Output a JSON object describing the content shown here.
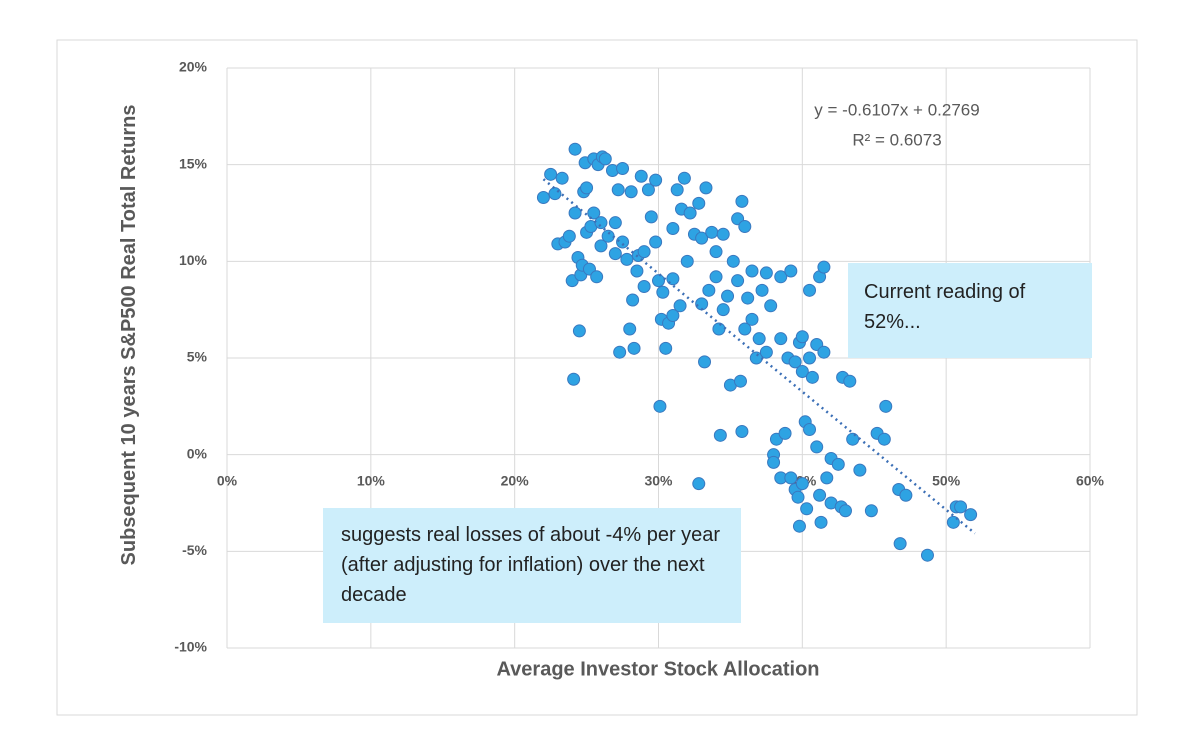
{
  "chart_data": {
    "type": "scatter",
    "xlabel": "Average Investor Stock Allocation",
    "ylabel": "Subsequent 10 years  S&P500 Real Total Returns",
    "xlim": [
      0,
      60
    ],
    "ylim": [
      -10,
      20
    ],
    "xticks": [
      {
        "value": 0,
        "label": "0%"
      },
      {
        "value": 10,
        "label": "10%"
      },
      {
        "value": 20,
        "label": "20%"
      },
      {
        "value": 30,
        "label": "30%"
      },
      {
        "value": 40,
        "label": "40%"
      },
      {
        "value": 50,
        "label": "50%"
      },
      {
        "value": 60,
        "label": "60%"
      }
    ],
    "yticks": [
      {
        "value": -10,
        "label": "-10%"
      },
      {
        "value": -5,
        "label": "-5%"
      },
      {
        "value": 0,
        "label": "0%"
      },
      {
        "value": 5,
        "label": "5%"
      },
      {
        "value": 10,
        "label": "10%"
      },
      {
        "value": 15,
        "label": "15%"
      },
      {
        "value": 20,
        "label": "20%"
      }
    ],
    "grid": true,
    "color": "#2ea3e3",
    "x": [
      22,
      22.5,
      22.8,
      23,
      23.3,
      23.5,
      23.8,
      24,
      24.1,
      24.2,
      24.2,
      24.4,
      24.5,
      24.6,
      24.7,
      24.8,
      24.9,
      25,
      25,
      25.2,
      25.3,
      25.5,
      25.5,
      25.7,
      25.8,
      26,
      26,
      26.1,
      26.3,
      26.5,
      26.8,
      27,
      27,
      27.2,
      27.3,
      27.5,
      27.5,
      27.8,
      28,
      28.1,
      28.2,
      28.3,
      28.5,
      28.6,
      28.8,
      29,
      29,
      29.3,
      29.5,
      29.8,
      29.8,
      30,
      30.1,
      30.2,
      30.3,
      30.5,
      30.7,
      31,
      31,
      31,
      31.3,
      31.5,
      31.6,
      31.8,
      32,
      32.2,
      32.5,
      32.8,
      32.8,
      33,
      33,
      33.3,
      33.2,
      33.5,
      33.7,
      34,
      34,
      34.2,
      34.3,
      34.5,
      34.5,
      34.8,
      35,
      35.2,
      35.5,
      35.5,
      35.7,
      35.8,
      35.8,
      36,
      36,
      36.2,
      36.5,
      36.5,
      36.8,
      37,
      37.2,
      37.5,
      37.5,
      37.8,
      38,
      38,
      38.2,
      38.5,
      38.5,
      38.5,
      38.8,
      39,
      39.2,
      39.2,
      39.5,
      39.5,
      39.7,
      39.8,
      39.8,
      40,
      40,
      40,
      40.2,
      40.3,
      40.5,
      40.5,
      40.5,
      40.7,
      41,
      41,
      41.2,
      41.2,
      41.3,
      41.5,
      41.5,
      41.7,
      42,
      42,
      42.5,
      42.7,
      42.8,
      43,
      43.3,
      43.5,
      44,
      44.8,
      45.2,
      45.7,
      45.8,
      46.7,
      46.8,
      47.2,
      48.7,
      50.5,
      50.7,
      51,
      51.7
    ],
    "values": [
      13.3,
      14.5,
      13.5,
      10.9,
      14.3,
      11,
      11.3,
      9,
      3.9,
      12.5,
      15.8,
      10.2,
      6.4,
      9.3,
      9.8,
      13.6,
      15.1,
      11.5,
      13.8,
      9.6,
      11.8,
      12.5,
      15.3,
      9.2,
      15,
      12,
      10.8,
      15.4,
      15.3,
      11.3,
      14.7,
      10.4,
      12,
      13.7,
      5.3,
      11,
      14.8,
      10.1,
      6.5,
      13.6,
      8,
      5.5,
      9.5,
      10.3,
      14.4,
      10.5,
      8.7,
      13.7,
      12.3,
      14.2,
      11,
      9,
      2.5,
      7,
      8.4,
      5.5,
      6.8,
      9.1,
      11.7,
      7.2,
      13.7,
      7.7,
      12.7,
      14.3,
      10,
      12.5,
      11.4,
      13,
      -1.5,
      11.2,
      7.8,
      13.8,
      4.8,
      8.5,
      11.5,
      9.2,
      10.5,
      6.5,
      1,
      11.4,
      7.5,
      8.2,
      3.6,
      10,
      12.2,
      9,
      3.8,
      13.1,
      1.2,
      11.8,
      6.5,
      8.1,
      7,
      9.5,
      5,
      6,
      8.5,
      9.4,
      5.3,
      7.7,
      0,
      -0.4,
      0.8,
      9.2,
      6,
      -1.2,
      1.1,
      5,
      9.5,
      -1.2,
      4.8,
      -1.8,
      -2.2,
      5.8,
      -3.7,
      6.1,
      4.3,
      -1.5,
      1.7,
      -2.8,
      8.5,
      5,
      1.3,
      4,
      5.7,
      0.4,
      9.2,
      -2.1,
      -3.5,
      9.7,
      5.3,
      -1.2,
      -0.2,
      -2.5,
      -0.5,
      -2.7,
      4,
      -2.9,
      3.8,
      0.8,
      -0.8,
      -2.9,
      1.1,
      0.8,
      2.5,
      -1.8,
      -4.6,
      -2.1,
      -5.2,
      -3.5,
      -2.7,
      -2.7,
      -3.1
    ],
    "trendline": {
      "color": "#3b6fb6",
      "x": [
        22,
        52
      ],
      "values": [
        14.25,
        -4.07
      ]
    },
    "equation": [
      "y = -0.6107x + 0.2769",
      "R² = 0.6073"
    ],
    "annotations": [
      "Current reading of 52%...",
      "suggests real losses of about -4% per year (after adjusting for inflation) over the next decade"
    ]
  }
}
